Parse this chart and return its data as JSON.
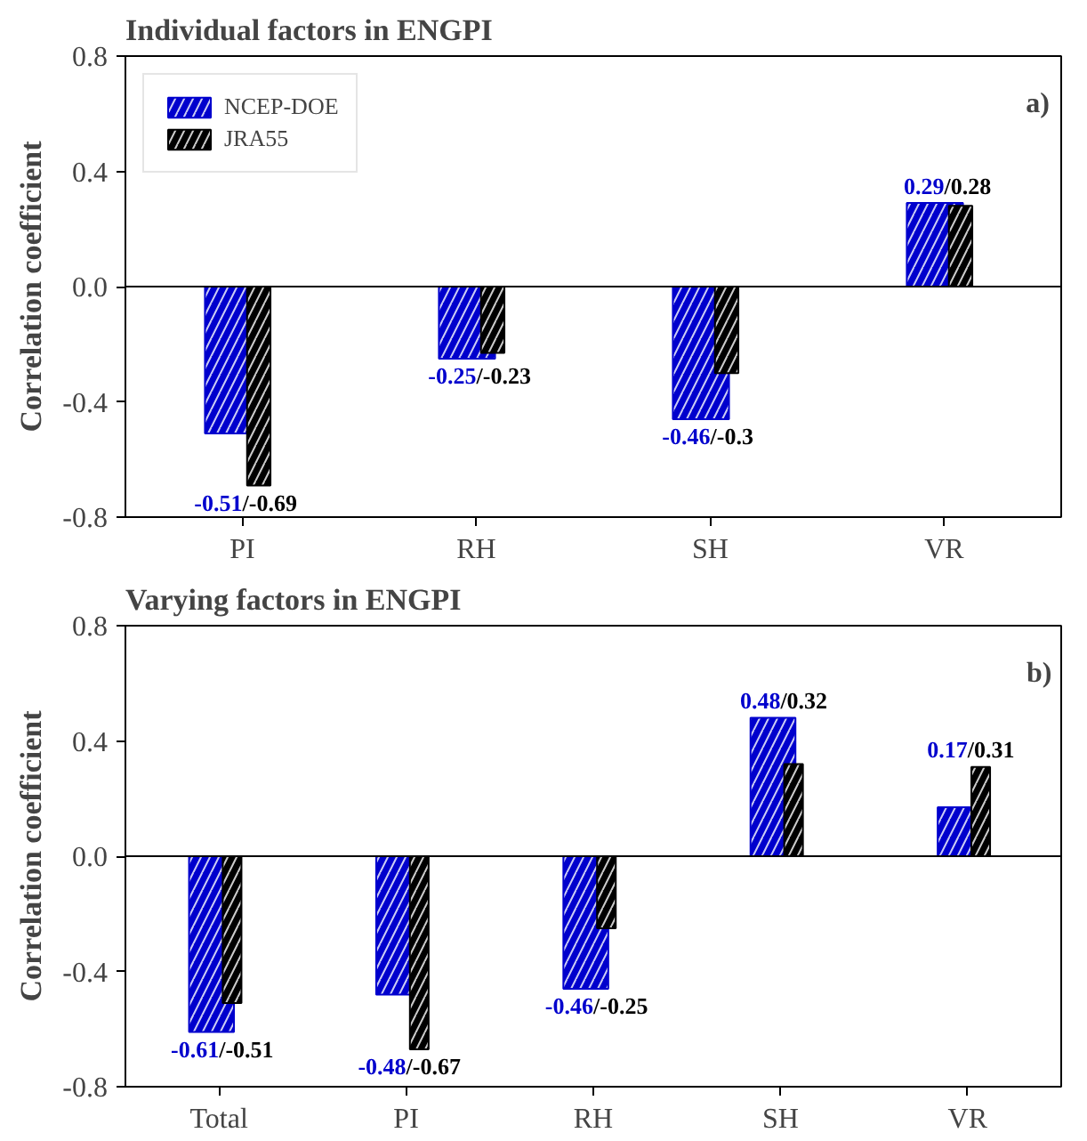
{
  "chart_data": [
    {
      "type": "bar",
      "title": "Individual factors in ENGPI",
      "ylabel": "Correlation coefficient",
      "categories": [
        "PI",
        "RH",
        "SH",
        "VR"
      ],
      "series": [
        {
          "name": "NCEP-DOE",
          "color": "#0000cd",
          "values": [
            -0.51,
            -0.25,
            -0.46,
            0.29
          ],
          "value_labels": [
            "-0.51",
            "-0.25",
            "-0.46",
            "0.29"
          ]
        },
        {
          "name": "JRA55",
          "color": "#000000",
          "values": [
            -0.69,
            -0.23,
            -0.3,
            0.28
          ],
          "value_labels": [
            "/-0.69",
            "/-0.23",
            "/-0.3",
            "/0.28"
          ]
        }
      ],
      "ylim": [
        -0.8,
        0.8
      ],
      "yticks": [
        {
          "value": -0.8,
          "label": "-0.8"
        },
        {
          "value": -0.4,
          "label": "-0.4"
        },
        {
          "value": 0,
          "label": "0.0"
        },
        {
          "value": 0.4,
          "label": "0.4"
        },
        {
          "value": 0.8,
          "label": "0.8"
        }
      ],
      "ref_lines": [
        {
          "axis": "y",
          "value": 0
        }
      ],
      "annotations": [
        "a)"
      ],
      "legend": "top left",
      "grid": false
    },
    {
      "type": "bar",
      "title": "Varying factors in ENGPI",
      "ylabel": "Correlation coefficient",
      "categories": [
        "Total",
        "PI",
        "RH",
        "SH",
        "VR"
      ],
      "series": [
        {
          "color": "#0000cd",
          "values": [
            -0.61,
            -0.48,
            -0.46,
            0.48,
            0.17
          ],
          "value_labels": [
            "-0.61",
            "-0.48",
            "-0.46",
            "0.48",
            "0.17"
          ]
        },
        {
          "color": "#000000",
          "values": [
            -0.51,
            -0.67,
            -0.25,
            0.32,
            0.31
          ],
          "value_labels": [
            "/-0.51",
            "/-0.67",
            "/-0.25",
            "/0.32",
            "/0.31"
          ]
        }
      ],
      "ylim": [
        -0.8,
        0.8
      ],
      "yticks": [
        {
          "value": -0.8,
          "label": "-0.8"
        },
        {
          "value": -0.4,
          "label": "-0.4"
        },
        {
          "value": 0,
          "label": "0.0"
        },
        {
          "value": 0.4,
          "label": "0.4"
        },
        {
          "value": 0.8,
          "label": "0.8"
        }
      ],
      "ref_lines": [
        {
          "axis": "y",
          "value": 0
        }
      ],
      "annotations": [
        "b)"
      ],
      "legend": false,
      "grid": false
    }
  ]
}
